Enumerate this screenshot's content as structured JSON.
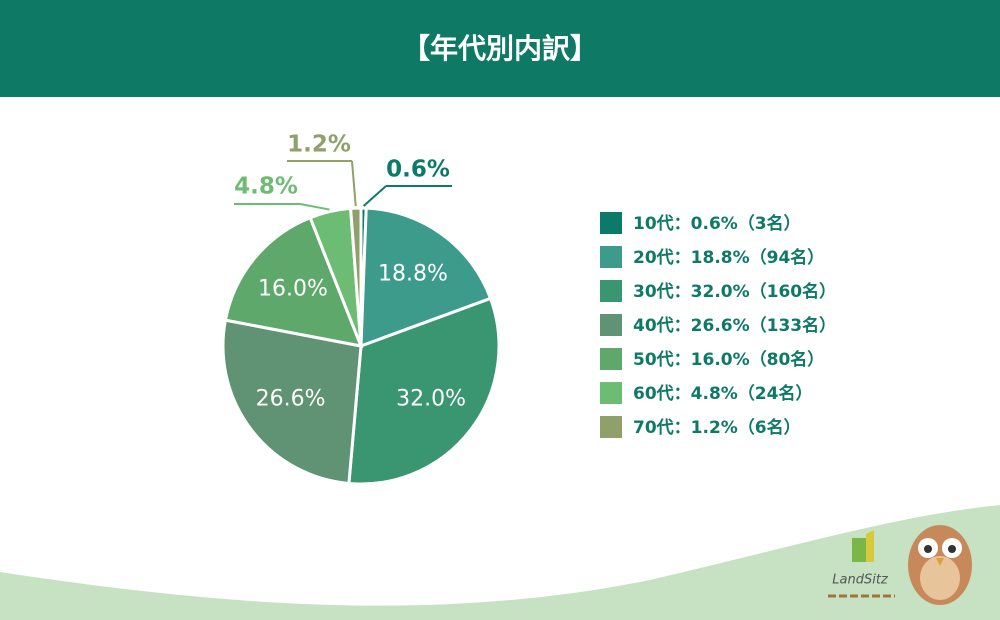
{
  "chart_data": {
    "type": "pie",
    "title": "【年代別内訳】",
    "categories": [
      "10代：0.6%（3名）",
      "20代：18.8%（94名）",
      "30代：32.0%（160名）",
      "40代：26.6%（133名）",
      "50代：16.0%（80名）",
      "60代：4.8%（24名）",
      "70代：1.2%（6名）"
    ],
    "values": [
      0.6,
      18.8,
      32.0,
      26.6,
      16.0,
      4.8,
      1.2
    ],
    "value_labels": [
      "0.6%",
      "18.8%",
      "32.0%",
      "26.6%",
      "16.0%",
      "4.8%",
      "1.2%"
    ],
    "colors": [
      "#0b7a68",
      "#3d9b8c",
      "#3a9671",
      "#5f9373",
      "#5ea86c",
      "#6cbd73",
      "#8fa06a"
    ],
    "legend": "right"
  },
  "logo_text": "LandSitz"
}
